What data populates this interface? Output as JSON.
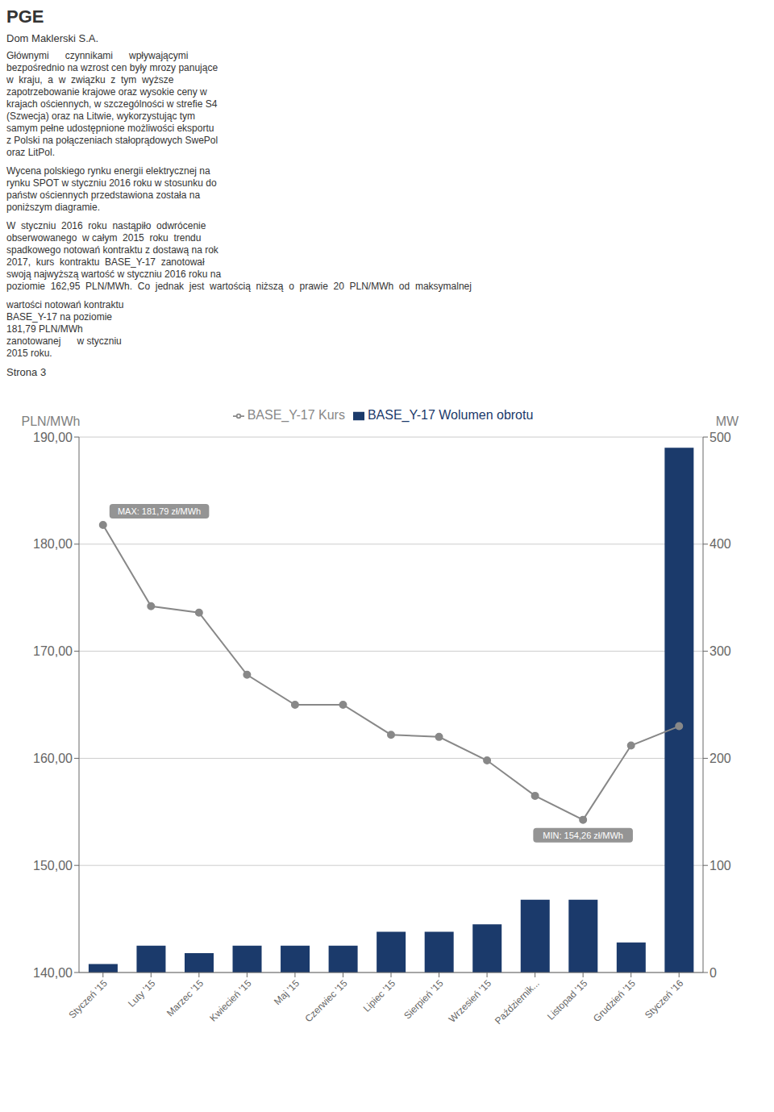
{
  "chart_data": {
    "type": "bar",
    "categories": [
      "Styczeń '15",
      "Luty '15",
      "Marzec '15",
      "Kwiecień '15",
      "Maj '15",
      "Czerwiec '15",
      "Lipiec '15",
      "Sierpień '15",
      "Wrzesień '15",
      "Październik...",
      "Listopad '15",
      "Grudzień '15",
      "Styczeń '16"
    ],
    "series": [
      {
        "name": "BASE_Y-17 Wolumen obrotu",
        "type": "bar",
        "color": "#1b3a6b",
        "axis": "y2",
        "values": [
          8,
          25,
          18,
          25,
          25,
          25,
          38,
          38,
          45,
          68,
          68,
          28,
          490
        ]
      },
      {
        "name": "BASE_Y-17 Kurs",
        "type": "line",
        "color": "#888888",
        "marker": "circle",
        "axis": "y",
        "values": [
          181.79,
          174.2,
          173.6,
          167.8,
          165.0,
          165.0,
          162.2,
          162.0,
          159.8,
          156.5,
          154.26,
          161.2,
          163.0
        ]
      }
    ],
    "ylim": [
      140,
      190
    ],
    "yticks": [
      {
        "value": 140,
        "label": "140,00"
      },
      {
        "value": 150,
        "label": "150,00"
      },
      {
        "value": 160,
        "label": "160,00"
      },
      {
        "value": 170,
        "label": "170,00"
      },
      {
        "value": 180,
        "label": "180,00"
      },
      {
        "value": 190,
        "label": "190,00"
      }
    ],
    "y_label": "PLN/MWh",
    "y2lim": [
      0,
      500
    ],
    "y2ticks": [
      0,
      100,
      200,
      300,
      400,
      500
    ],
    "y2_label": "MW",
    "grid": true,
    "legend": "top",
    "annotations": [
      "PGE",
      "Dom Maklerski S.A.",
      [
        "Głównymi      czynnikami      wpływającymi",
        "bezpośrednio na wzrost cen były mrozy panujące",
        "w  kraju,  a  w  związku  z  tym  wyższe",
        "zapotrzebowanie krajowe oraz wysokie ceny w",
        "krajach ościennych, w szczególności w strefie S4",
        "(Szwecja) oraz na Litwie, wykorzystując tym",
        "samym pełne udostępnione możliwości eksportu",
        "z Polski na połączeniach stałoprądowych SwePol",
        "oraz LitPol."
      ],
      [
        "Wycena polskiego rynku energii elektrycznej na",
        "rynku SPOT w styczniu 2016 roku w stosunku do",
        "państw ościennych przedstawiona została na",
        "poniższym diagramie."
      ],
      [
        "W  styczniu  2016  roku  nastąpiło  odwrócenie",
        "obserwowanego  w całym  2015  roku  trendu",
        "spadkowego notowań kontraktu z dostawą na rok",
        "2017,  kurs  kontraktu  BASE_Y-17  zanotował",
        "swoją najwyższą wartość w styczniu 2016 roku na",
        "poziomie  162,95  PLN/MWh.  Co  jednak  jest  wartością  niższą  o  prawie  20  PLN/MWh  od  maksymalnej"
      ],
      [
        "wartości notowań kontraktu",
        "BASE_Y-17 na poziomie",
        "181,79 PLN/MWh",
        "zanotowanej      w styczniu",
        "2015 roku."
      ],
      "Strona 3",
      {
        "text": "MAX: 181,79 zł/MWh",
        "x": "Styczeń '15",
        "y": 181.79
      },
      {
        "text": "MIN: 154,26 zł/MWh",
        "x": "Listopad '15",
        "y": 154.26
      }
    ]
  }
}
